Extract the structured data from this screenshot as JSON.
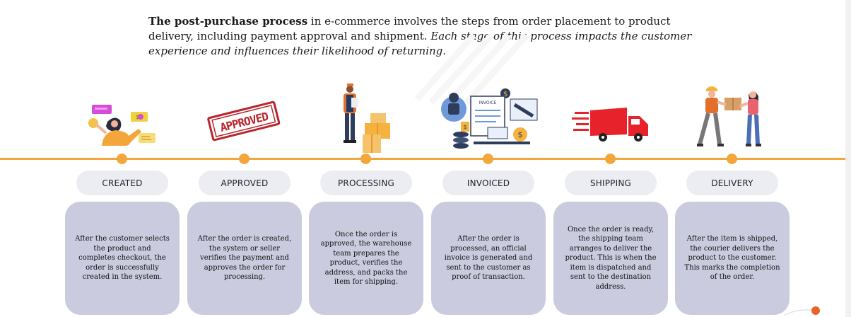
{
  "intro": {
    "bold_lead": "The post-purchase process",
    "plain": " in e-commerce involves the steps from order placement to product delivery, including payment approval and shipment. ",
    "italic": "Each stage of this process impacts the customer experience and influences their likelihood of returning."
  },
  "stages": [
    {
      "label": "CREATED",
      "description": "After the customer selects the product and completes checkout, the order is successfully created in the system."
    },
    {
      "label": "APPROVED",
      "description": "After the order is created, the system or seller verifies the payment and approves the order for processing.",
      "stamp_text": "APPROVED"
    },
    {
      "label": "PROCESSING",
      "description": "Once the order is approved, the warehouse team prepares the product, verifies the address, and packs the item for shipping."
    },
    {
      "label": "INVOICED",
      "description": "After the order is processed, an official invoice is generated and sent to the customer as proof of transaction.",
      "invoice_text": "INVOICE"
    },
    {
      "label": "SHIPPING",
      "description": "Once the order is ready, the shipping team arranges to deliver the product. This is when the item is dispatched and sent to the destination address."
    },
    {
      "label": "DELIVERY",
      "description": "After the item is shipped, the courier delivers the product to the customer. This marks the completion of the order."
    }
  ],
  "colors": {
    "timeline": "#f3a73b",
    "pill_bg": "#ecedf2",
    "card_bg": "#cacbde",
    "stamp_red": "#b8262c",
    "truck_red": "#e8222a",
    "navy": "#2f3d5c"
  }
}
